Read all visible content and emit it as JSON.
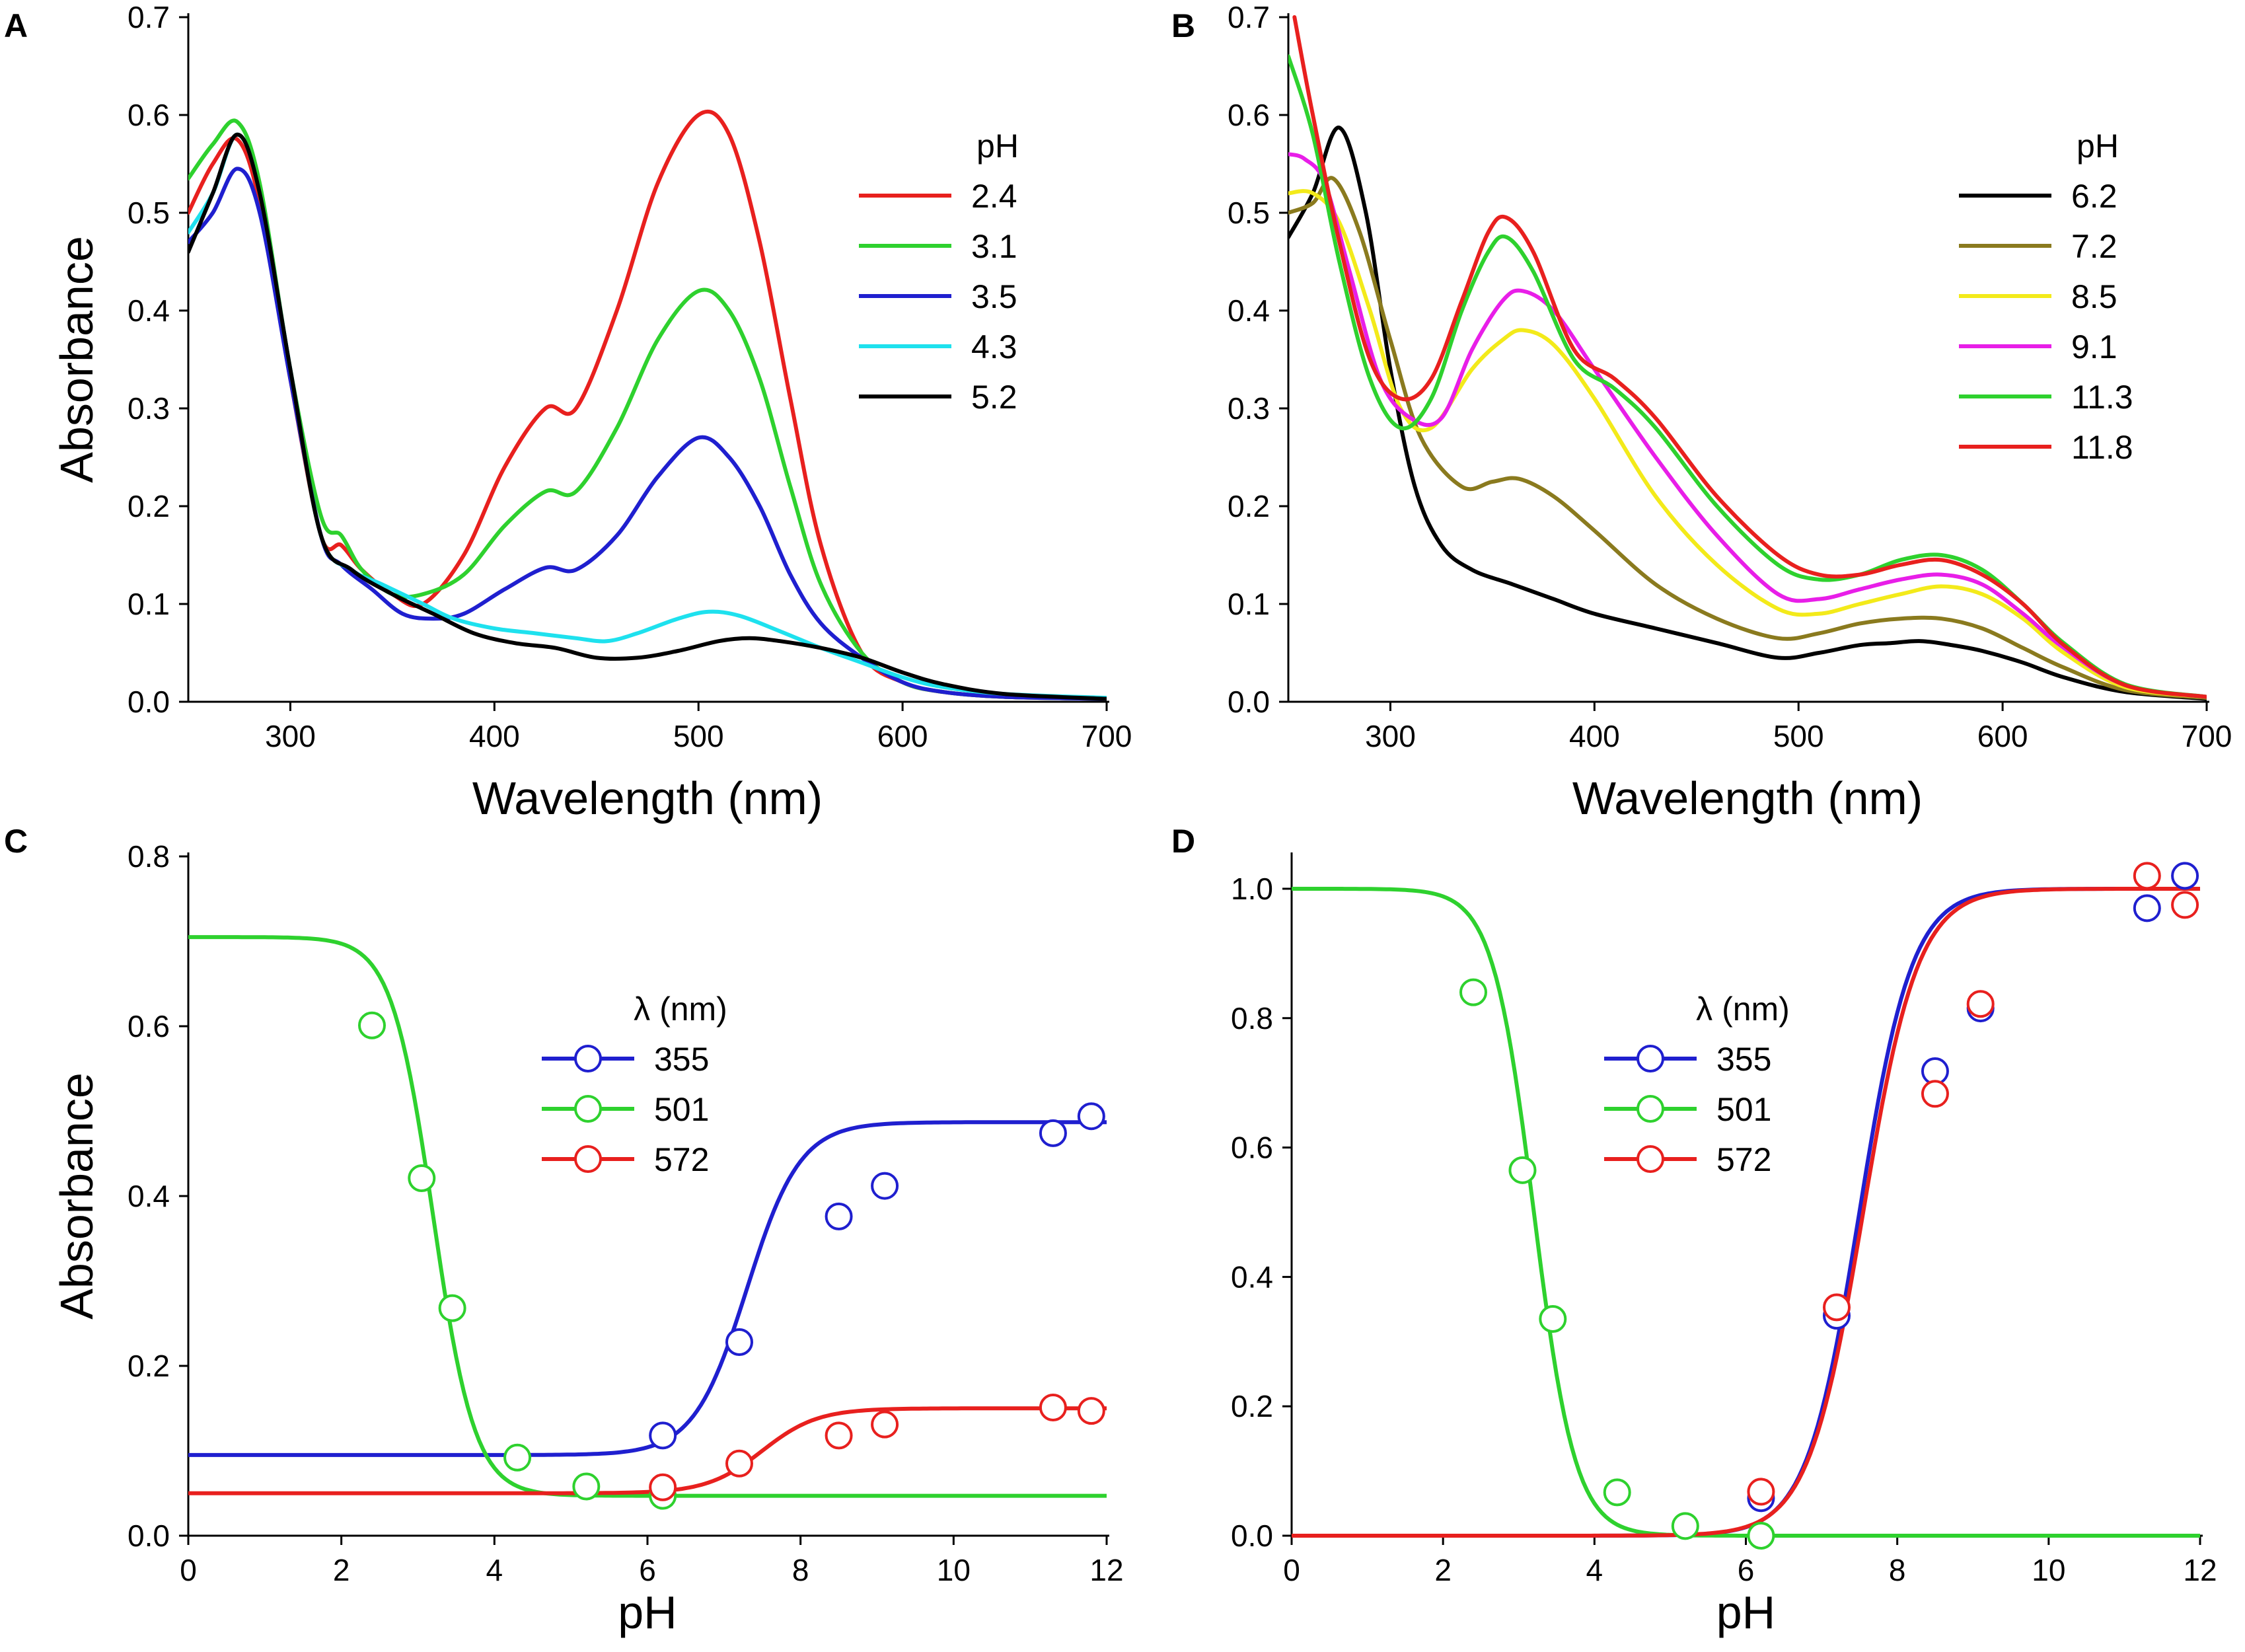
{
  "chart_data": [
    {
      "panel": "A",
      "type": "line",
      "xlabel": "Wavelength (nm)",
      "ylabel": "Absorbance",
      "xlim": [
        250,
        700
      ],
      "ylim": [
        0,
        0.7
      ],
      "xticks": [
        300,
        400,
        500,
        600,
        700
      ],
      "yticks": [
        0.0,
        0.1,
        0.2,
        0.3,
        0.4,
        0.5,
        0.6,
        0.7
      ],
      "xtick_labels": [
        "300",
        "400",
        "500",
        "600",
        "700"
      ],
      "ytick_labels": [
        "0.0",
        "0.1",
        "0.2",
        "0.3",
        "0.4",
        "0.5",
        "0.6",
        "0.7"
      ],
      "legend_title": "pH",
      "legend_position": "right",
      "series": [
        {
          "name": "2.4",
          "color": "#e8201e",
          "x": [
            250,
            262,
            274,
            285,
            300,
            315,
            325,
            335,
            350,
            365,
            385,
            405,
            425,
            440,
            460,
            480,
            500,
            515,
            530,
            545,
            560,
            580,
            600,
            620,
            650,
            700
          ],
          "y": [
            0.5,
            0.55,
            0.575,
            0.51,
            0.33,
            0.17,
            0.16,
            0.135,
            0.11,
            0.1,
            0.15,
            0.24,
            0.3,
            0.3,
            0.4,
            0.53,
            0.6,
            0.58,
            0.47,
            0.31,
            0.16,
            0.05,
            0.02,
            0.01,
            0.005,
            0.003
          ]
        },
        {
          "name": "3.1",
          "color": "#2ed12e",
          "x": [
            250,
            262,
            274,
            285,
            300,
            315,
            325,
            335,
            350,
            365,
            385,
            405,
            425,
            440,
            460,
            480,
            500,
            515,
            530,
            545,
            560,
            580,
            600,
            620,
            650,
            700
          ],
          "y": [
            0.535,
            0.57,
            0.593,
            0.53,
            0.34,
            0.19,
            0.17,
            0.135,
            0.11,
            0.11,
            0.13,
            0.18,
            0.215,
            0.215,
            0.28,
            0.37,
            0.42,
            0.4,
            0.33,
            0.22,
            0.12,
            0.05,
            0.02,
            0.01,
            0.005,
            0.003
          ]
        },
        {
          "name": "3.5",
          "color": "#1f1fcf",
          "x": [
            250,
            262,
            274,
            285,
            300,
            315,
            325,
            340,
            355,
            370,
            385,
            405,
            425,
            440,
            460,
            480,
            500,
            515,
            530,
            545,
            560,
            580,
            600,
            620,
            650,
            700
          ],
          "y": [
            0.47,
            0.5,
            0.545,
            0.5,
            0.33,
            0.17,
            0.14,
            0.115,
            0.09,
            0.085,
            0.09,
            0.115,
            0.137,
            0.135,
            0.17,
            0.23,
            0.27,
            0.25,
            0.2,
            0.13,
            0.08,
            0.045,
            0.02,
            0.01,
            0.005,
            0.003
          ]
        },
        {
          "name": "4.3",
          "color": "#1ee1ee",
          "x": [
            250,
            262,
            274,
            285,
            300,
            315,
            330,
            345,
            365,
            380,
            400,
            420,
            440,
            455,
            470,
            490,
            505,
            520,
            540,
            560,
            580,
            600,
            620,
            650,
            700
          ],
          "y": [
            0.48,
            0.52,
            0.58,
            0.52,
            0.34,
            0.17,
            0.135,
            0.12,
            0.1,
            0.085,
            0.075,
            0.07,
            0.065,
            0.062,
            0.07,
            0.085,
            0.092,
            0.088,
            0.072,
            0.055,
            0.04,
            0.025,
            0.015,
            0.008,
            0.004
          ]
        },
        {
          "name": "5.2",
          "color": "#000000",
          "x": [
            250,
            262,
            274,
            285,
            300,
            315,
            330,
            350,
            370,
            390,
            410,
            430,
            450,
            470,
            490,
            510,
            525,
            540,
            560,
            580,
            600,
            620,
            650,
            700
          ],
          "y": [
            0.46,
            0.52,
            0.58,
            0.52,
            0.34,
            0.17,
            0.135,
            0.11,
            0.09,
            0.07,
            0.06,
            0.055,
            0.045,
            0.045,
            0.052,
            0.062,
            0.065,
            0.062,
            0.055,
            0.045,
            0.03,
            0.018,
            0.008,
            0.003
          ]
        }
      ]
    },
    {
      "panel": "B",
      "type": "line",
      "xlabel": "Wavelength (nm)",
      "ylabel": "",
      "xlim": [
        250,
        700
      ],
      "ylim": [
        0,
        0.7
      ],
      "xticks": [
        300,
        400,
        500,
        600,
        700
      ],
      "yticks": [
        0.0,
        0.1,
        0.2,
        0.3,
        0.4,
        0.5,
        0.6,
        0.7
      ],
      "xtick_labels": [
        "300",
        "400",
        "500",
        "600",
        "700"
      ],
      "ytick_labels": [
        "0.0",
        "0.1",
        "0.2",
        "0.3",
        "0.4",
        "0.5",
        "0.6",
        "0.7"
      ],
      "legend_title": "pH",
      "legend_position": "right",
      "series": [
        {
          "name": "6.2",
          "color": "#000000",
          "x": [
            250,
            262,
            275,
            288,
            300,
            312,
            325,
            340,
            360,
            380,
            400,
            430,
            460,
            490,
            510,
            530,
            545,
            560,
            575,
            590,
            610,
            630,
            660,
            700
          ],
          "y": [
            0.475,
            0.52,
            0.587,
            0.5,
            0.34,
            0.22,
            0.16,
            0.135,
            0.12,
            0.105,
            0.09,
            0.075,
            0.06,
            0.045,
            0.05,
            0.058,
            0.06,
            0.062,
            0.058,
            0.052,
            0.04,
            0.025,
            0.01,
            0.003
          ]
        },
        {
          "name": "7.2",
          "color": "#8a7a1e",
          "x": [
            250,
            262,
            272,
            285,
            300,
            315,
            335,
            350,
            363,
            380,
            400,
            430,
            460,
            490,
            510,
            530,
            550,
            570,
            590,
            610,
            630,
            660,
            700
          ],
          "y": [
            0.5,
            0.51,
            0.535,
            0.48,
            0.37,
            0.27,
            0.22,
            0.225,
            0.228,
            0.21,
            0.175,
            0.12,
            0.085,
            0.065,
            0.07,
            0.08,
            0.085,
            0.085,
            0.075,
            0.055,
            0.035,
            0.012,
            0.004
          ]
        },
        {
          "name": "8.5",
          "color": "#f3ea1a",
          "x": [
            250,
            262,
            275,
            290,
            305,
            320,
            340,
            355,
            365,
            380,
            400,
            430,
            460,
            490,
            510,
            530,
            550,
            570,
            590,
            610,
            630,
            660,
            700
          ],
          "y": [
            0.52,
            0.52,
            0.49,
            0.4,
            0.3,
            0.28,
            0.34,
            0.37,
            0.38,
            0.365,
            0.31,
            0.21,
            0.14,
            0.095,
            0.09,
            0.1,
            0.11,
            0.118,
            0.11,
            0.085,
            0.05,
            0.015,
            0.005
          ]
        },
        {
          "name": "9.1",
          "color": "#e81ee8",
          "x": [
            250,
            258,
            268,
            280,
            295,
            310,
            325,
            340,
            355,
            365,
            380,
            400,
            430,
            460,
            490,
            510,
            530,
            550,
            570,
            590,
            610,
            630,
            660,
            700
          ],
          "y": [
            0.56,
            0.555,
            0.53,
            0.44,
            0.33,
            0.29,
            0.29,
            0.36,
            0.41,
            0.42,
            0.4,
            0.34,
            0.25,
            0.17,
            0.11,
            0.105,
            0.115,
            0.125,
            0.13,
            0.12,
            0.09,
            0.055,
            0.017,
            0.005
          ]
        },
        {
          "name": "11.3",
          "color": "#2ed12e",
          "x": [
            250,
            262,
            275,
            290,
            305,
            320,
            335,
            348,
            357,
            370,
            390,
            410,
            430,
            460,
            490,
            510,
            530,
            550,
            570,
            590,
            610,
            630,
            660,
            700
          ],
          "y": [
            0.66,
            0.58,
            0.45,
            0.33,
            0.28,
            0.31,
            0.4,
            0.46,
            0.475,
            0.44,
            0.35,
            0.32,
            0.28,
            0.2,
            0.14,
            0.125,
            0.13,
            0.145,
            0.15,
            0.135,
            0.1,
            0.06,
            0.018,
            0.005
          ]
        },
        {
          "name": "11.8",
          "color": "#e8201e",
          "x": [
            253,
            262,
            275,
            290,
            305,
            320,
            335,
            348,
            357,
            370,
            390,
            410,
            430,
            460,
            490,
            510,
            530,
            550,
            570,
            590,
            610,
            630,
            660,
            700
          ],
          "y": [
            0.7,
            0.6,
            0.47,
            0.35,
            0.31,
            0.33,
            0.41,
            0.48,
            0.495,
            0.46,
            0.36,
            0.33,
            0.29,
            0.21,
            0.15,
            0.13,
            0.13,
            0.14,
            0.145,
            0.13,
            0.1,
            0.058,
            0.017,
            0.005
          ]
        }
      ]
    },
    {
      "panel": "C",
      "type": "scatter",
      "xlabel": "pH",
      "ylabel": "Absorbance",
      "xlim": [
        0,
        12
      ],
      "ylim": [
        0,
        0.8
      ],
      "xticks": [
        0,
        2,
        4,
        6,
        8,
        10,
        12
      ],
      "yticks": [
        0.0,
        0.2,
        0.4,
        0.6,
        0.8
      ],
      "xtick_labels": [
        "0",
        "2",
        "4",
        "6",
        "8",
        "10",
        "12"
      ],
      "ytick_labels": [
        "0.0",
        "0.2",
        "0.4",
        "0.6",
        "0.8"
      ],
      "legend_title": "λ (nm)",
      "legend_position": "center",
      "series": [
        {
          "name": "355",
          "color": "#1f1fcf",
          "fit": {
            "model": "rise",
            "bottom": 0.095,
            "top": 0.487,
            "pKa": 7.3,
            "slope": 1.25
          },
          "points": [
            [
              6.2,
              0.118
            ],
            [
              7.2,
              0.228
            ],
            [
              8.5,
              0.376
            ],
            [
              9.1,
              0.412
            ],
            [
              11.3,
              0.474
            ],
            [
              11.8,
              0.494
            ]
          ]
        },
        {
          "name": "501",
          "color": "#2ed12e",
          "fit": {
            "model": "fall",
            "top": 0.705,
            "bottom": 0.047,
            "pKa": 3.2,
            "slope": 1.6
          },
          "points": [
            [
              2.4,
              0.601
            ],
            [
              3.05,
              0.421
            ],
            [
              3.45,
              0.268
            ],
            [
              4.3,
              0.092
            ],
            [
              5.2,
              0.058
            ],
            [
              6.2,
              0.047
            ]
          ]
        },
        {
          "name": "572",
          "color": "#e8201e",
          "fit": {
            "model": "rise",
            "bottom": 0.05,
            "top": 0.15,
            "pKa": 7.5,
            "slope": 1.2
          },
          "points": [
            [
              6.2,
              0.057
            ],
            [
              7.2,
              0.085
            ],
            [
              8.5,
              0.118
            ],
            [
              9.1,
              0.131
            ],
            [
              11.3,
              0.151
            ],
            [
              11.8,
              0.147
            ]
          ]
        }
      ]
    },
    {
      "panel": "D",
      "type": "scatter",
      "xlabel": "pH",
      "ylabel": "",
      "xlim": [
        0,
        12
      ],
      "ylim": [
        0,
        1.05
      ],
      "xticks": [
        0,
        2,
        4,
        6,
        8,
        10,
        12
      ],
      "yticks": [
        0.0,
        0.2,
        0.4,
        0.6,
        0.8,
        1.0
      ],
      "xtick_labels": [
        "0",
        "2",
        "4",
        "6",
        "8",
        "10",
        "12"
      ],
      "ytick_labels": [
        "0.0",
        "0.2",
        "0.4",
        "0.6",
        "0.8",
        "1.0"
      ],
      "legend_title": "λ (nm)",
      "legend_position": "top-center",
      "series": [
        {
          "name": "355",
          "color": "#1f1fcf",
          "fit": {
            "model": "rise",
            "bottom": 0.0,
            "top": 1.0,
            "pKa": 7.5,
            "slope": 1.25
          },
          "points": [
            [
              6.2,
              0.058
            ],
            [
              7.2,
              0.34
            ],
            [
              8.5,
              0.718
            ],
            [
              9.1,
              0.815
            ],
            [
              11.3,
              0.97
            ],
            [
              11.8,
              1.02
            ]
          ]
        },
        {
          "name": "501",
          "color": "#2ed12e",
          "fit": {
            "model": "fall",
            "top": 1.0,
            "bottom": 0.0,
            "pKa": 3.2,
            "slope": 1.6
          },
          "points": [
            [
              2.4,
              0.84
            ],
            [
              3.05,
              0.565
            ],
            [
              3.45,
              0.335
            ],
            [
              4.3,
              0.067
            ],
            [
              5.2,
              0.015
            ],
            [
              6.2,
              0.0
            ]
          ]
        },
        {
          "name": "572",
          "color": "#e8201e",
          "fit": {
            "model": "rise",
            "bottom": 0.0,
            "top": 1.0,
            "pKa": 7.55,
            "slope": 1.2
          },
          "points": [
            [
              6.2,
              0.068
            ],
            [
              7.2,
              0.353
            ],
            [
              8.5,
              0.683
            ],
            [
              9.1,
              0.822
            ],
            [
              11.3,
              1.02
            ],
            [
              11.8,
              0.975
            ]
          ]
        }
      ]
    }
  ]
}
